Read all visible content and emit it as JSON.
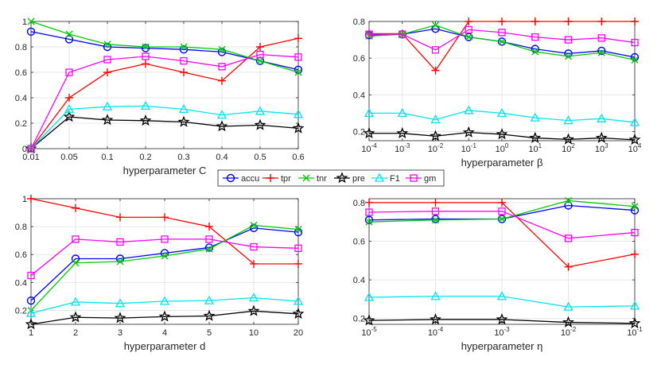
{
  "colors": {
    "accu": "#0000ff",
    "tpr": "#ff0000",
    "tnr": "#00cc00",
    "pre": "#000000",
    "F1": "#00e5ee",
    "gm": "#ff00ff"
  },
  "legend": {
    "entries": [
      {
        "key": "accu",
        "label": "accu",
        "marker": "circle"
      },
      {
        "key": "tpr",
        "label": "tpr",
        "marker": "plus"
      },
      {
        "key": "tnr",
        "label": "tnr",
        "marker": "x"
      },
      {
        "key": "pre",
        "label": "pre",
        "marker": "star"
      },
      {
        "key": "F1",
        "label": "F1",
        "marker": "triangle"
      },
      {
        "key": "gm",
        "label": "gm",
        "marker": "square"
      }
    ]
  },
  "chart_data": [
    {
      "type": "line",
      "xlabel": "hyperparameter C",
      "ylim": [
        0,
        1
      ],
      "yticks": [
        "0",
        "0.2",
        "0.4",
        "0.6",
        "0.8",
        "1"
      ],
      "categories": [
        "0.01",
        "0.05",
        "0.1",
        "0.2",
        "0.3",
        "0.4",
        "0.5",
        "0.6"
      ],
      "series": [
        {
          "name": "accu",
          "values": [
            0.92,
            0.86,
            0.8,
            0.79,
            0.78,
            0.76,
            0.69,
            0.62
          ]
        },
        {
          "name": "tpr",
          "values": [
            0.0,
            0.4,
            0.6,
            0.667,
            0.6,
            0.533,
            0.8,
            0.867
          ]
        },
        {
          "name": "tnr",
          "values": [
            1.0,
            0.9,
            0.82,
            0.8,
            0.8,
            0.78,
            0.69,
            0.6
          ]
        },
        {
          "name": "pre",
          "values": [
            0.0,
            0.25,
            0.225,
            0.22,
            0.21,
            0.175,
            0.185,
            0.16
          ]
        },
        {
          "name": "F1",
          "values": [
            0.0,
            0.31,
            0.33,
            0.335,
            0.31,
            0.265,
            0.295,
            0.27
          ]
        },
        {
          "name": "gm",
          "values": [
            0.0,
            0.6,
            0.7,
            0.725,
            0.69,
            0.645,
            0.74,
            0.72
          ]
        }
      ]
    },
    {
      "type": "line",
      "xlabel": "hyperparameter β",
      "ylim": [
        0.15,
        0.8
      ],
      "yticks": [
        "0.2",
        "0.4",
        "0.6",
        "0.8"
      ],
      "categories": [
        "10^-4",
        "10^-3",
        "10^-2",
        "10^-1",
        "10^0",
        "10^1",
        "10^2",
        "10^3",
        "10^4"
      ],
      "series": [
        {
          "name": "accu",
          "values": [
            0.725,
            0.73,
            0.76,
            0.715,
            0.69,
            0.65,
            0.625,
            0.64,
            0.605
          ]
        },
        {
          "name": "tpr",
          "values": [
            0.733,
            0.733,
            0.533,
            0.8,
            0.8,
            0.8,
            0.8,
            0.8,
            0.8
          ]
        },
        {
          "name": "tnr",
          "values": [
            0.72,
            0.73,
            0.78,
            0.715,
            0.69,
            0.635,
            0.61,
            0.63,
            0.59
          ]
        },
        {
          "name": "pre",
          "values": [
            0.19,
            0.19,
            0.175,
            0.195,
            0.185,
            0.165,
            0.157,
            0.165,
            0.155
          ]
        },
        {
          "name": "F1",
          "values": [
            0.3,
            0.3,
            0.265,
            0.315,
            0.3,
            0.275,
            0.26,
            0.27,
            0.25
          ]
        },
        {
          "name": "gm",
          "values": [
            0.73,
            0.73,
            0.645,
            0.755,
            0.74,
            0.715,
            0.7,
            0.71,
            0.685
          ]
        }
      ]
    },
    {
      "type": "line",
      "xlabel": "hyperparameter d",
      "ylim": [
        0.1,
        1
      ],
      "yticks": [
        "0.2",
        "0.4",
        "0.6",
        "0.8",
        "1"
      ],
      "categories": [
        "1",
        "2",
        "3",
        "4",
        "5",
        "10",
        "20"
      ],
      "series": [
        {
          "name": "accu",
          "values": [
            0.27,
            0.57,
            0.57,
            0.61,
            0.65,
            0.79,
            0.76
          ]
        },
        {
          "name": "tpr",
          "values": [
            1.0,
            0.933,
            0.867,
            0.867,
            0.8,
            0.533,
            0.533
          ]
        },
        {
          "name": "tnr",
          "values": [
            0.2,
            0.54,
            0.55,
            0.59,
            0.64,
            0.81,
            0.78
          ]
        },
        {
          "name": "pre",
          "values": [
            0.1,
            0.15,
            0.145,
            0.155,
            0.16,
            0.195,
            0.175
          ]
        },
        {
          "name": "F1",
          "values": [
            0.18,
            0.26,
            0.25,
            0.265,
            0.27,
            0.29,
            0.265
          ]
        },
        {
          "name": "gm",
          "values": [
            0.45,
            0.71,
            0.69,
            0.71,
            0.71,
            0.655,
            0.645
          ]
        }
      ]
    },
    {
      "type": "line",
      "xlabel": "hyperparameter η",
      "ylim": [
        0.17,
        0.82
      ],
      "yticks": [
        "0.2",
        "0.4",
        "0.6",
        "0.8"
      ],
      "categories": [
        "10^-5",
        "10^-4",
        "10^-3",
        "10^-2",
        "10^-1"
      ],
      "series": [
        {
          "name": "accu",
          "values": [
            0.71,
            0.715,
            0.715,
            0.785,
            0.76
          ]
        },
        {
          "name": "tpr",
          "values": [
            0.8,
            0.8,
            0.8,
            0.467,
            0.533
          ]
        },
        {
          "name": "tnr",
          "values": [
            0.7,
            0.71,
            0.715,
            0.81,
            0.78
          ]
        },
        {
          "name": "pre",
          "values": [
            0.19,
            0.195,
            0.195,
            0.18,
            0.175
          ]
        },
        {
          "name": "F1",
          "values": [
            0.31,
            0.315,
            0.315,
            0.26,
            0.265
          ]
        },
        {
          "name": "gm",
          "values": [
            0.75,
            0.755,
            0.755,
            0.615,
            0.645
          ]
        }
      ]
    }
  ]
}
